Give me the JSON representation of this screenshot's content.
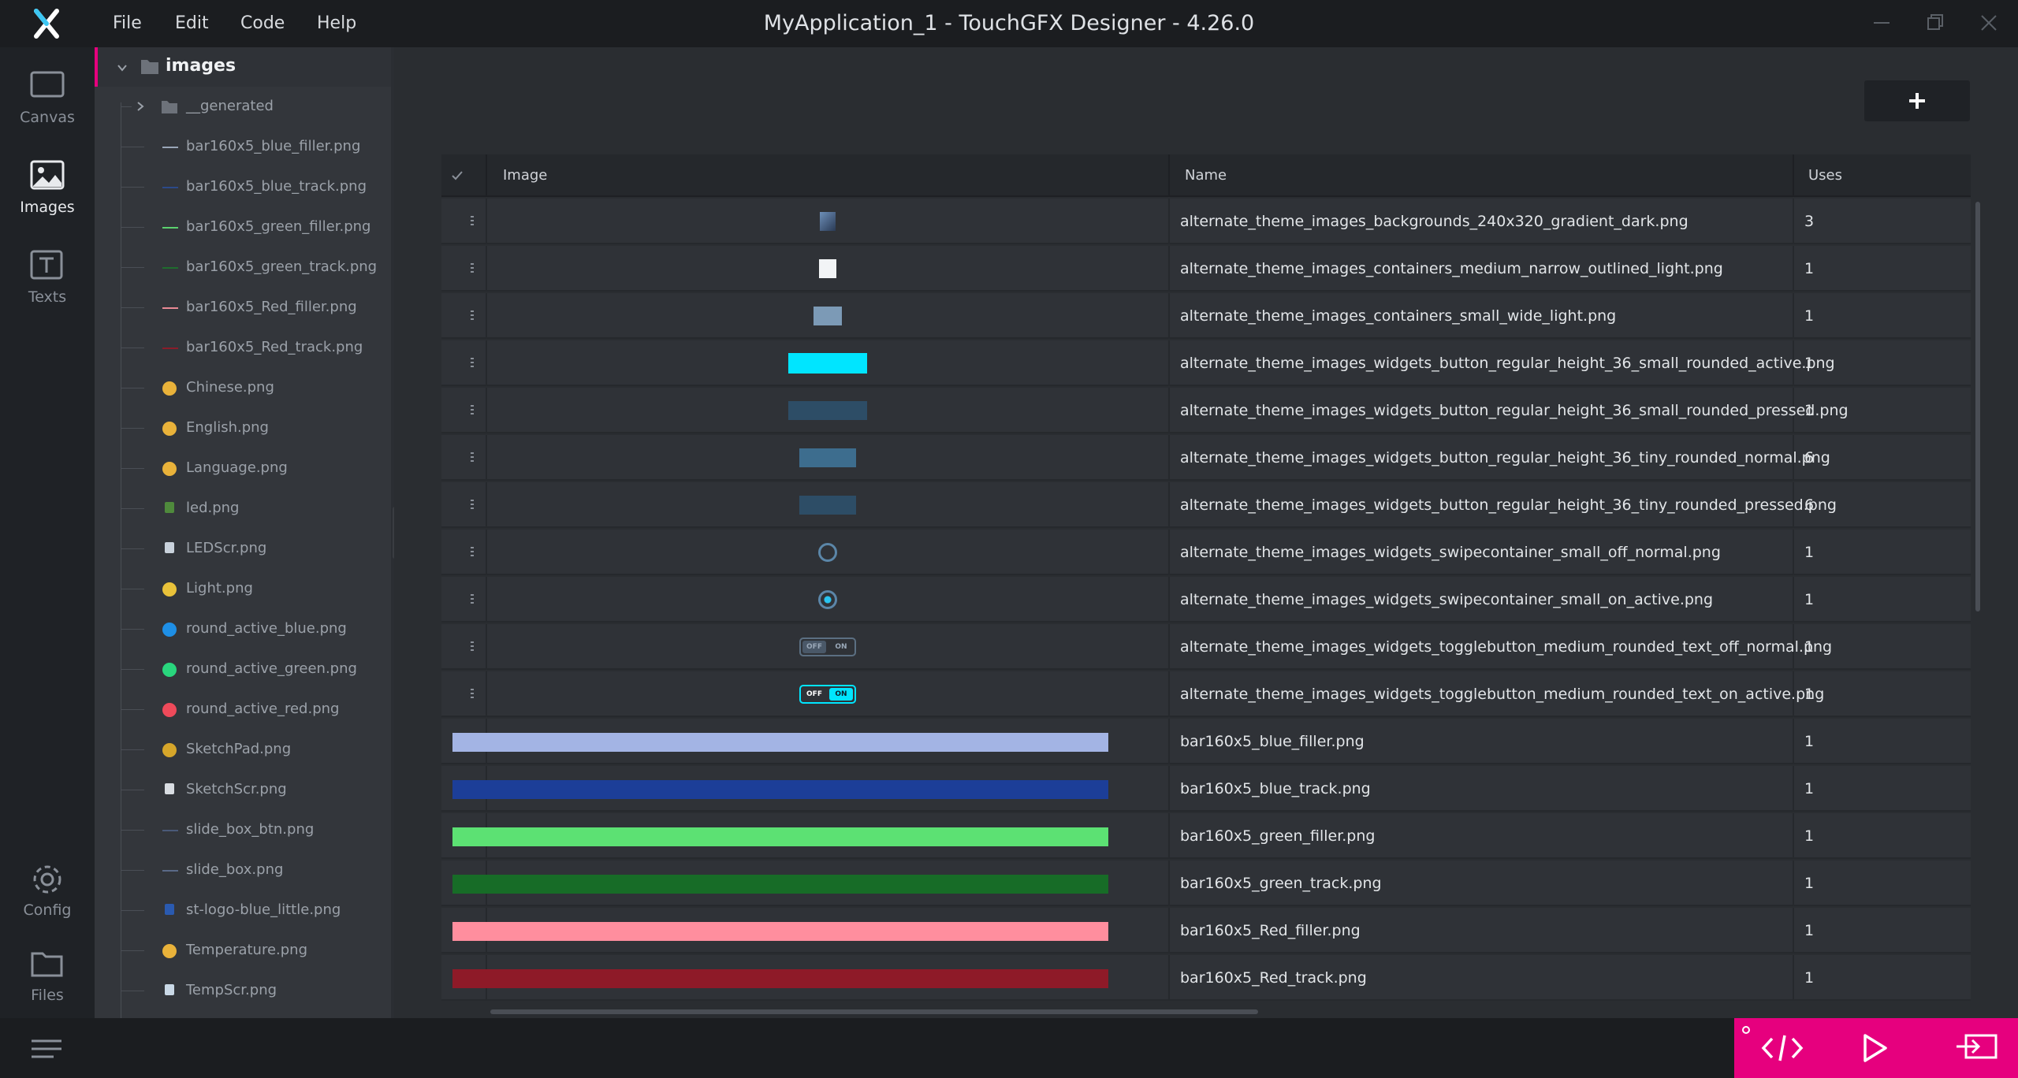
{
  "titlebar": {
    "title": "MyApplication_1 - TouchGFX Designer - 4.26.0",
    "menu": [
      "File",
      "Edit",
      "Code",
      "Help"
    ]
  },
  "rail": {
    "items": [
      {
        "label": "Canvas",
        "icon": "canvas-icon"
      },
      {
        "label": "Images",
        "icon": "image-icon",
        "active": true
      },
      {
        "label": "Texts",
        "icon": "text-icon"
      },
      {
        "label": "Config",
        "icon": "gear-icon"
      },
      {
        "label": "Files",
        "icon": "folder-icon"
      }
    ]
  },
  "tree": {
    "root": "images",
    "items": [
      {
        "label": "__generated",
        "icon": "folder-icon"
      },
      {
        "label": "bar160x5_blue_filler.png",
        "color": "#9aa6b8"
      },
      {
        "label": "bar160x5_blue_track.png",
        "color": "#2c4a8a"
      },
      {
        "label": "bar160x5_green_filler.png",
        "color": "#5bd16e"
      },
      {
        "label": "bar160x5_green_track.png",
        "color": "#1f6d2e"
      },
      {
        "label": "bar160x5_Red_filler.png",
        "color": "#e98a95"
      },
      {
        "label": "bar160x5_Red_track.png",
        "color": "#8a1d2a"
      },
      {
        "label": "Chinese.png",
        "color": "#e9b23a"
      },
      {
        "label": "English.png",
        "color": "#e9b23a"
      },
      {
        "label": "Language.png",
        "color": "#e9b23a"
      },
      {
        "label": "led.png",
        "color": "#4f8a3c"
      },
      {
        "label": "LEDScr.png",
        "color": "#c9d2dc"
      },
      {
        "label": "Light.png",
        "color": "#e9c23a"
      },
      {
        "label": "round_active_blue.png",
        "color": "#1e8fe6"
      },
      {
        "label": "round_active_green.png",
        "color": "#29d67d"
      },
      {
        "label": "round_active_red.png",
        "color": "#ef4a5a"
      },
      {
        "label": "SketchPad.png",
        "color": "#d6a62a"
      },
      {
        "label": "SketchScr.png",
        "color": "#d9dde2"
      },
      {
        "label": "slide_box_btn.png",
        "color": "#4a5a78"
      },
      {
        "label": "slide_box.png",
        "color": "#5a6a88"
      },
      {
        "label": "st-logo-blue_little.png",
        "color": "#2a5ab0"
      },
      {
        "label": "Temperature.png",
        "color": "#e9b23a"
      },
      {
        "label": "TempScr.png",
        "color": "#c9d8e6"
      }
    ]
  },
  "table": {
    "headers": {
      "image": "Image",
      "name": "Name",
      "uses": "Uses"
    },
    "rows": [
      {
        "name": "alternate_theme_images_backgrounds_240x320_gradient_dark.png",
        "uses": "3",
        "thumb": "gradient"
      },
      {
        "name": "alternate_theme_images_containers_medium_narrow_outlined_light.png",
        "uses": "1",
        "thumb": "white-square"
      },
      {
        "name": "alternate_theme_images_containers_small_wide_light.png",
        "uses": "1",
        "thumb": "light-box"
      },
      {
        "name": "alternate_theme_images_widgets_button_regular_height_36_small_rounded_active.png",
        "uses": "1",
        "thumb": "cyan-button"
      },
      {
        "name": "alternate_theme_images_widgets_button_regular_height_36_small_rounded_pressed.png",
        "uses": "1",
        "thumb": "dark-button"
      },
      {
        "name": "alternate_theme_images_widgets_button_regular_height_36_tiny_rounded_normal.png",
        "uses": "6",
        "thumb": "mid-button"
      },
      {
        "name": "alternate_theme_images_widgets_button_regular_height_36_tiny_rounded_pressed.png",
        "uses": "6",
        "thumb": "dark-small-button"
      },
      {
        "name": "alternate_theme_images_widgets_swipecontainer_small_off_normal.png",
        "uses": "1",
        "thumb": "ring"
      },
      {
        "name": "alternate_theme_images_widgets_swipecontainer_small_on_active.png",
        "uses": "1",
        "thumb": "ring-dot"
      },
      {
        "name": "alternate_theme_images_widgets_togglebutton_medium_rounded_text_off_normal.png",
        "uses": "1",
        "thumb": "toggle-off"
      },
      {
        "name": "alternate_theme_images_widgets_togglebutton_medium_rounded_text_on_active.png",
        "uses": "1",
        "thumb": "toggle-on"
      },
      {
        "name": "bar160x5_blue_filler.png",
        "uses": "1",
        "thumb": "bar",
        "color": "#a3b4e4"
      },
      {
        "name": "bar160x5_blue_track.png",
        "uses": "1",
        "thumb": "bar",
        "color": "#1c3e98"
      },
      {
        "name": "bar160x5_green_filler.png",
        "uses": "1",
        "thumb": "bar",
        "color": "#5ce173"
      },
      {
        "name": "bar160x5_green_track.png",
        "uses": "1",
        "thumb": "bar",
        "color": "#176c27"
      },
      {
        "name": "bar160x5_Red_filler.png",
        "uses": "1",
        "thumb": "bar",
        "color": "#ff8e9e"
      },
      {
        "name": "bar160x5_Red_track.png",
        "uses": "1",
        "thumb": "bar",
        "color": "#8e1a28"
      }
    ]
  },
  "toggle": {
    "off": "OFF",
    "on": "ON"
  },
  "colors": {
    "accent": "#e6007e",
    "cyan": "#00e5ff"
  }
}
